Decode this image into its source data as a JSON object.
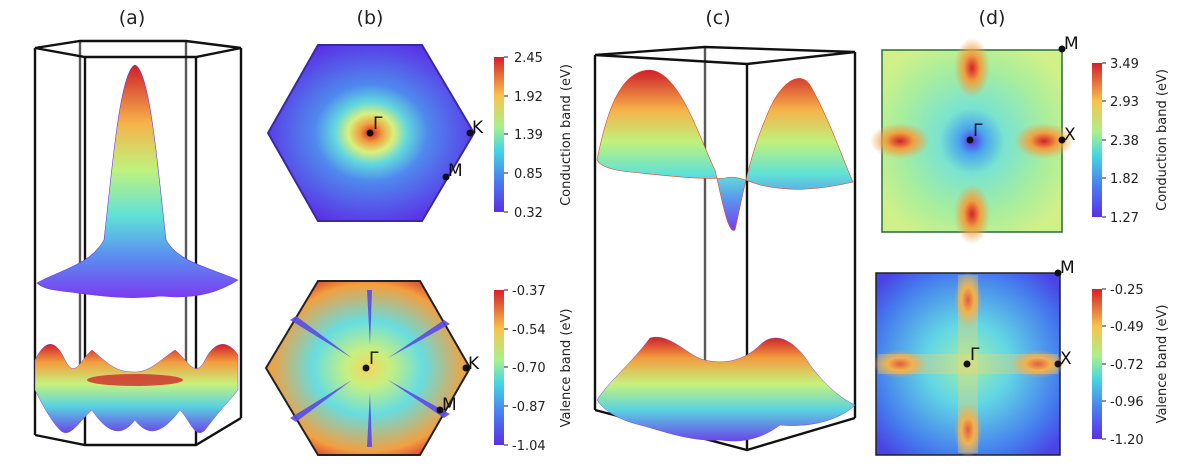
{
  "panels": {
    "a": {
      "label": "(a)"
    },
    "b": {
      "label": "(b)",
      "top": {
        "points": {
          "gamma": "Γ",
          "k": "K",
          "m": "M"
        },
        "colorbar": {
          "title": "Conduction band (eV)",
          "ticks": [
            "2.45",
            "1.92",
            "1.39",
            "0.85",
            "0.32"
          ]
        }
      },
      "bottom": {
        "points": {
          "gamma": "Γ",
          "k": "K",
          "m": "M"
        },
        "colorbar": {
          "title": "Valence band (eV)",
          "ticks": [
            "-0.37",
            "-0.54",
            "-0.70",
            "-0.87",
            "-1.04"
          ]
        }
      }
    },
    "c": {
      "label": "(c)"
    },
    "d": {
      "label": "(d)",
      "top": {
        "points": {
          "gamma": "Γ",
          "x": "X",
          "m": "M"
        },
        "colorbar": {
          "title": "Conduction band (eV)",
          "ticks": [
            "3.49",
            "2.93",
            "2.38",
            "1.82",
            "1.27"
          ]
        }
      },
      "bottom": {
        "points": {
          "gamma": "Γ",
          "x": "X",
          "m": "M"
        },
        "colorbar": {
          "title": "Valence band (eV)",
          "ticks": [
            "-0.25",
            "-0.49",
            "-0.72",
            "-0.96",
            "-1.20"
          ]
        }
      }
    }
  },
  "colormap": {
    "name": "rainbow",
    "low": "#5b2fe6",
    "high": "#d4202a"
  }
}
